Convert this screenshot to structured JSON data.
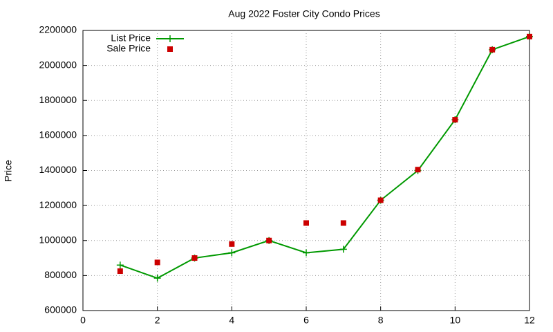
{
  "chart_data": {
    "type": "line",
    "title": "Aug 2022 Foster City Condo Prices",
    "y_label": "Price",
    "x": [
      1,
      2,
      3,
      4,
      5,
      6,
      7,
      8,
      9,
      10,
      11,
      12
    ],
    "series": [
      {
        "name": "List Price",
        "color": "#009900",
        "mode": "lines+points",
        "values": [
          860000,
          785000,
          900000,
          930000,
          1000000,
          930000,
          950000,
          1230000,
          1400000,
          1690000,
          2090000,
          2165000
        ]
      },
      {
        "name": "Sale Price",
        "color": "#cc0000",
        "mode": "points",
        "values": [
          825000,
          875000,
          900000,
          980000,
          1000000,
          1100000,
          1100000,
          1230000,
          1405000,
          1690000,
          2090000,
          2165000
        ]
      }
    ],
    "xlim": [
      0,
      12
    ],
    "xticks": [
      0,
      2,
      4,
      6,
      8,
      10,
      12
    ],
    "ylim": [
      600000,
      2200000
    ],
    "yticks": [
      600000,
      800000,
      1000000,
      1200000,
      1400000,
      1600000,
      1800000,
      2000000,
      2200000
    ],
    "grid": true,
    "legend": "top-left"
  }
}
